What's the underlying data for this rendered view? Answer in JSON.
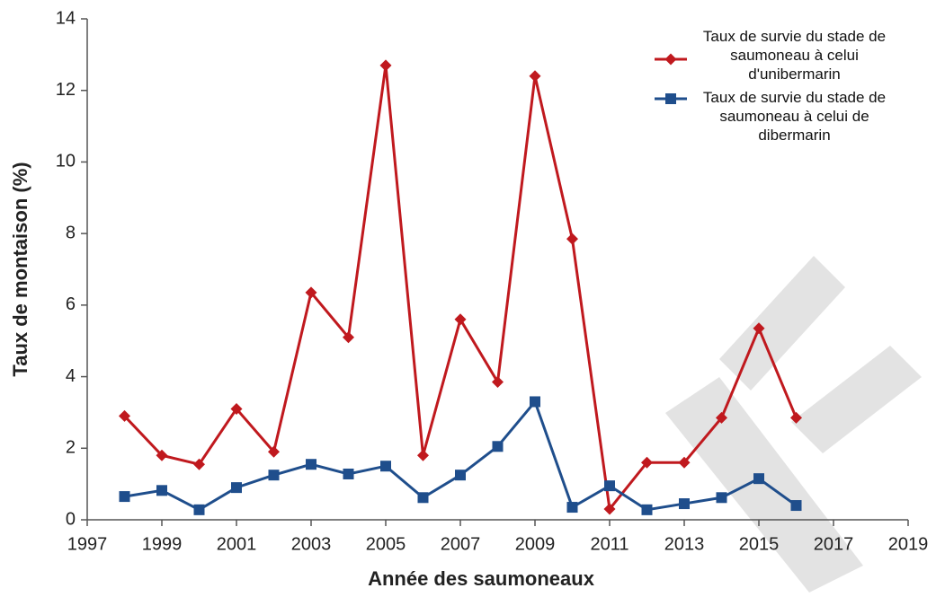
{
  "chart_data": {
    "type": "line",
    "x_label": "Année des saumoneaux",
    "y_label": "Taux de montaison (%)",
    "x": [
      1998,
      1999,
      2000,
      2001,
      2002,
      2003,
      2004,
      2005,
      2006,
      2007,
      2008,
      2009,
      2010,
      2011,
      2012,
      2013,
      2014,
      2015,
      2016
    ],
    "series": [
      {
        "name": "Taux de survie du stade de saumoneau à celui d'unibermarin",
        "color": "#c0191e",
        "marker": "diamond",
        "values": [
          2.9,
          1.8,
          1.55,
          3.1,
          1.9,
          6.35,
          5.1,
          12.7,
          1.8,
          5.6,
          3.85,
          12.4,
          7.85,
          0.3,
          1.6,
          1.6,
          2.85,
          5.35,
          2.85
        ]
      },
      {
        "name": "Taux de survie du stade de saumoneau à celui de dibermarin",
        "color": "#1f4e8c",
        "marker": "square",
        "values": [
          0.65,
          0.82,
          0.28,
          0.9,
          1.25,
          1.55,
          1.28,
          1.5,
          0.62,
          1.25,
          2.05,
          3.3,
          0.35,
          0.95,
          0.28,
          0.45,
          0.62,
          1.15,
          0.4
        ]
      }
    ],
    "xlim": [
      1997,
      2019
    ],
    "xticks": [
      1997,
      1999,
      2001,
      2003,
      2005,
      2007,
      2009,
      2011,
      2013,
      2015,
      2017,
      2019
    ],
    "ylim": [
      0,
      14
    ],
    "yticks": [
      0,
      2,
      4,
      6,
      8,
      10,
      12,
      14
    ],
    "grid": false,
    "legend": "upper right"
  }
}
